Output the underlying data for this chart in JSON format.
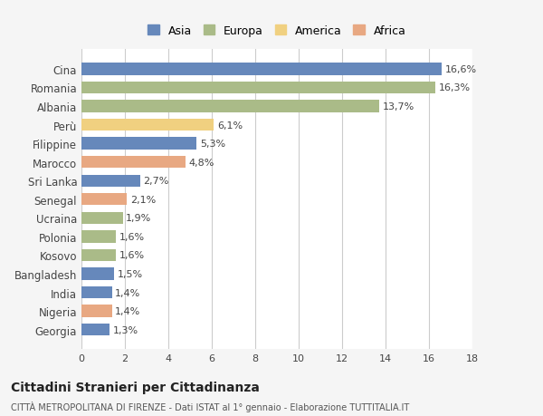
{
  "categories": [
    "Georgia",
    "Nigeria",
    "India",
    "Bangladesh",
    "Kosovo",
    "Polonia",
    "Ucraina",
    "Senegal",
    "Sri Lanka",
    "Marocco",
    "Filippine",
    "Perù",
    "Albania",
    "Romania",
    "Cina"
  ],
  "values": [
    1.3,
    1.4,
    1.4,
    1.5,
    1.6,
    1.6,
    1.9,
    2.1,
    2.7,
    4.8,
    5.3,
    6.1,
    13.7,
    16.3,
    16.6
  ],
  "labels": [
    "1,3%",
    "1,4%",
    "1,4%",
    "1,5%",
    "1,6%",
    "1,6%",
    "1,9%",
    "2,1%",
    "2,7%",
    "4,8%",
    "5,3%",
    "6,1%",
    "13,7%",
    "16,3%",
    "16,6%"
  ],
  "colors": [
    "#6688bb",
    "#e8a882",
    "#6688bb",
    "#6688bb",
    "#aabb88",
    "#aabb88",
    "#aabb88",
    "#e8a882",
    "#6688bb",
    "#e8a882",
    "#6688bb",
    "#f0d080",
    "#aabb88",
    "#aabb88",
    "#6688bb"
  ],
  "continent_labels": [
    "Asia",
    "Europa",
    "America",
    "Africa"
  ],
  "continent_colors": [
    "#6688bb",
    "#aabb88",
    "#f0d080",
    "#e8a882"
  ],
  "title": "Cittadini Stranieri per Cittadinanza",
  "subtitle": "CITTÀ METROPOLITANA DI FIRENZE - Dati ISTAT al 1° gennaio - Elaborazione TUTTITALIA.IT",
  "xlim": [
    0,
    18
  ],
  "xticks": [
    0,
    2,
    4,
    6,
    8,
    10,
    12,
    14,
    16,
    18
  ],
  "background_color": "#f5f5f5",
  "bar_background": "#ffffff",
  "grid_color": "#cccccc"
}
